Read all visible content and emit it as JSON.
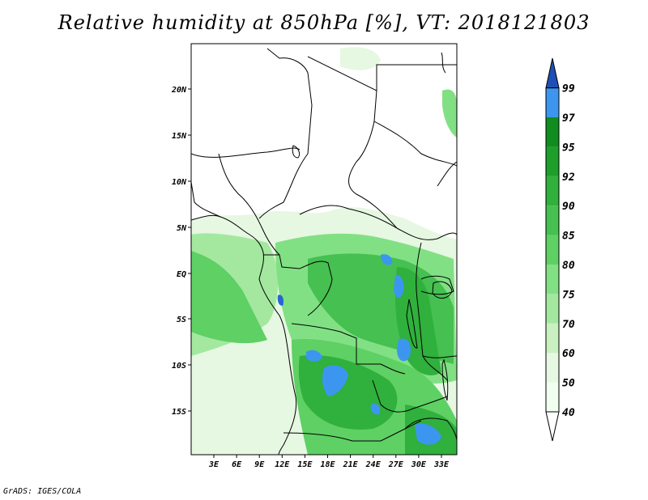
{
  "title": "Relative humidity at 850hPa [%], VT: 2018121803",
  "credit": "GrADS: IGES/COLA",
  "map": {
    "lon_range": [
      0,
      35
    ],
    "lat_range": [
      -20,
      25
    ],
    "lat_ticks": [
      "20N",
      "15N",
      "10N",
      "5N",
      "EQ",
      "5S",
      "10S",
      "15S"
    ],
    "lon_ticks": [
      "3E",
      "6E",
      "9E",
      "12E",
      "15E",
      "18E",
      "21E",
      "24E",
      "27E",
      "30E",
      "33E"
    ]
  },
  "colorbar": {
    "levels": [
      "40",
      "50",
      "60",
      "70",
      "75",
      "80",
      "85",
      "90",
      "92",
      "95",
      "97",
      "99"
    ],
    "colors": [
      "#f0fff0",
      "#e6f7e2",
      "#c8f0c0",
      "#a4e8a0",
      "#82e084",
      "#5ed064",
      "#46c050",
      "#30b03c",
      "#1e9e2a",
      "#118c1e",
      "#3c96f0",
      "#2864d2",
      "#1e50b4"
    ],
    "under_color": "#ffffff"
  }
}
